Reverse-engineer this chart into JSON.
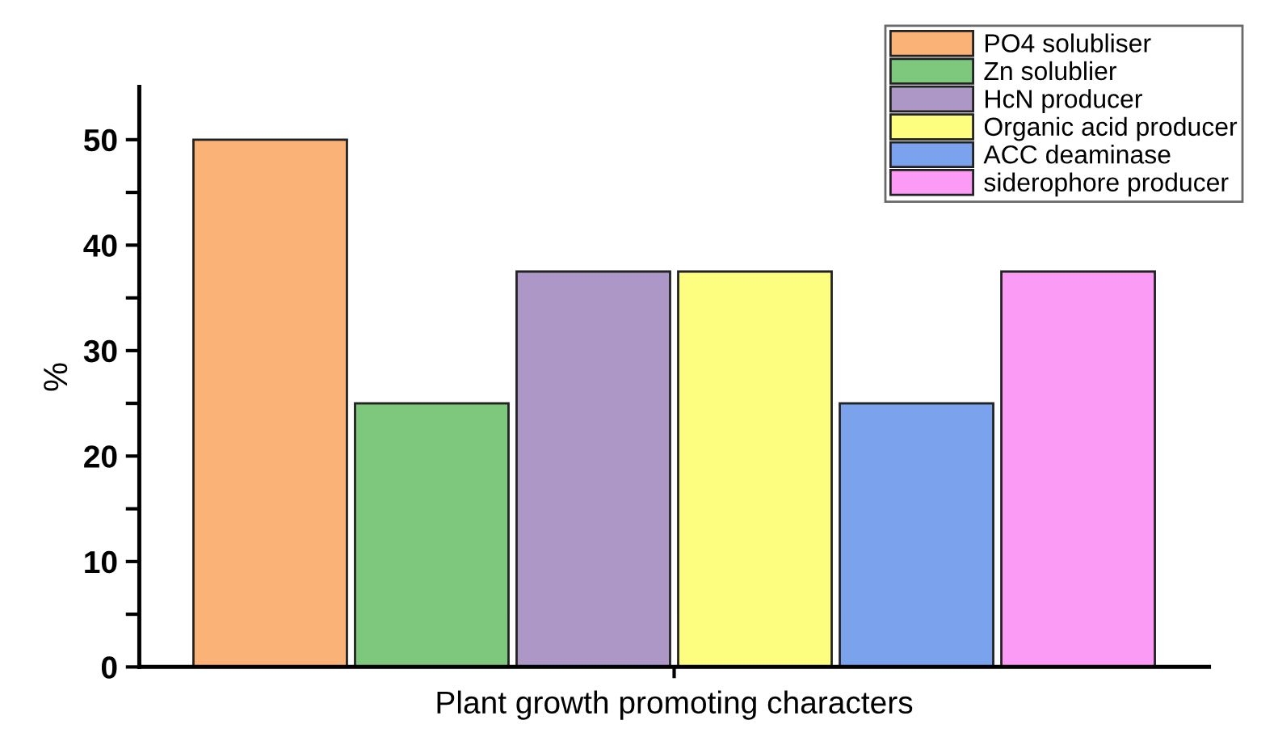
{
  "chart_data": {
    "type": "bar",
    "xlabel": "Plant growth promoting characters",
    "ylabel": "%",
    "categories": [
      null,
      null,
      null,
      null,
      null,
      null
    ],
    "series": [
      {
        "name": "PO4 solubliser",
        "color": "#fbb276",
        "values": [
          50,
          null,
          null,
          null,
          null,
          null
        ]
      },
      {
        "name": "Zn solublier",
        "color": "#7ec87e",
        "values": [
          null,
          25,
          null,
          null,
          null,
          null
        ]
      },
      {
        "name": "HcN producer",
        "color": "#ad97c6",
        "values": [
          null,
          null,
          37.5,
          null,
          null,
          null
        ]
      },
      {
        "name": "Organic acid producer",
        "color": "#fdfd80",
        "values": [
          null,
          null,
          null,
          37.5,
          null,
          null
        ]
      },
      {
        "name": "ACC deaminase",
        "color": "#7ba2ec",
        "values": [
          null,
          null,
          null,
          null,
          25,
          null
        ]
      },
      {
        "name": "siderophore producer",
        "color": "#fb9bf6",
        "values": [
          null,
          null,
          null,
          null,
          null,
          37.5
        ]
      }
    ],
    "ylim": [
      0,
      55
    ],
    "yticks": [
      0,
      {
        "value": 5,
        "label": null
      },
      10,
      {
        "value": 15,
        "label": null
      },
      20,
      {
        "value": 25,
        "label": null
      },
      30,
      {
        "value": 35,
        "label": null
      },
      40,
      {
        "value": 45,
        "label": null
      },
      50
    ],
    "grid": false,
    "legend": "top right"
  }
}
